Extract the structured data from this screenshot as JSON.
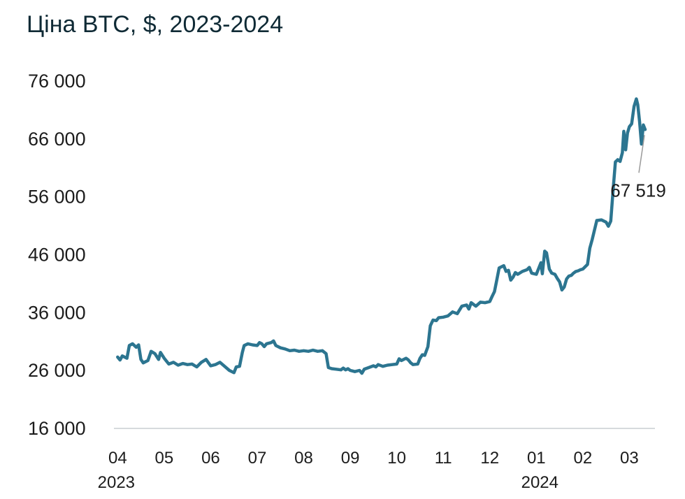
{
  "chart_data": {
    "type": "line",
    "title": "Ціна BTC, $, 2023-2024",
    "xlabel": "",
    "ylabel": "",
    "ylim": [
      16000,
      76000
    ],
    "yticks": [
      16000,
      26000,
      36000,
      46000,
      56000,
      66000,
      76000
    ],
    "ytick_labels": [
      "16 000",
      "26 000",
      "36 000",
      "46 000",
      "56 000",
      "66 000",
      "76 000"
    ],
    "xticks": [
      {
        "t": 0,
        "label": "04",
        "year": "2023"
      },
      {
        "t": 1,
        "label": "05",
        "year": ""
      },
      {
        "t": 2,
        "label": "06",
        "year": ""
      },
      {
        "t": 3,
        "label": "07",
        "year": ""
      },
      {
        "t": 4,
        "label": "08",
        "year": ""
      },
      {
        "t": 5,
        "label": "09",
        "year": ""
      },
      {
        "t": 6,
        "label": "10",
        "year": ""
      },
      {
        "t": 7,
        "label": "11",
        "year": ""
      },
      {
        "t": 8,
        "label": "12",
        "year": ""
      },
      {
        "t": 9,
        "label": "01",
        "year": "2024"
      },
      {
        "t": 10,
        "label": "02",
        "year": ""
      },
      {
        "t": 11,
        "label": "03",
        "year": ""
      }
    ],
    "xlim": [
      -0.05,
      11.55
    ],
    "grid": false,
    "line_color": "#2c7590",
    "series": [
      {
        "name": "BTC",
        "color": "#2c7590",
        "points": [
          [
            0.0,
            28200
          ],
          [
            0.05,
            27700
          ],
          [
            0.1,
            28400
          ],
          [
            0.2,
            28000
          ],
          [
            0.25,
            30200
          ],
          [
            0.32,
            30500
          ],
          [
            0.4,
            29900
          ],
          [
            0.45,
            30300
          ],
          [
            0.5,
            27800
          ],
          [
            0.55,
            27200
          ],
          [
            0.65,
            27600
          ],
          [
            0.72,
            29200
          ],
          [
            0.8,
            28800
          ],
          [
            0.88,
            27800
          ],
          [
            0.92,
            29000
          ],
          [
            1.0,
            28000
          ],
          [
            1.1,
            27000
          ],
          [
            1.2,
            27300
          ],
          [
            1.3,
            26800
          ],
          [
            1.4,
            27100
          ],
          [
            1.5,
            26900
          ],
          [
            1.6,
            27000
          ],
          [
            1.7,
            26500
          ],
          [
            1.8,
            27300
          ],
          [
            1.9,
            27800
          ],
          [
            2.0,
            26700
          ],
          [
            2.1,
            26900
          ],
          [
            2.2,
            27300
          ],
          [
            2.3,
            26600
          ],
          [
            2.4,
            25900
          ],
          [
            2.5,
            25500
          ],
          [
            2.55,
            26500
          ],
          [
            2.62,
            26600
          ],
          [
            2.68,
            29000
          ],
          [
            2.72,
            30200
          ],
          [
            2.8,
            30500
          ],
          [
            2.9,
            30300
          ],
          [
            3.0,
            30200
          ],
          [
            3.05,
            30700
          ],
          [
            3.1,
            30500
          ],
          [
            3.15,
            30000
          ],
          [
            3.2,
            30500
          ],
          [
            3.3,
            30700
          ],
          [
            3.35,
            31000
          ],
          [
            3.4,
            30200
          ],
          [
            3.5,
            29800
          ],
          [
            3.6,
            29600
          ],
          [
            3.7,
            29300
          ],
          [
            3.8,
            29400
          ],
          [
            3.9,
            29200
          ],
          [
            4.0,
            29300
          ],
          [
            4.1,
            29200
          ],
          [
            4.2,
            29400
          ],
          [
            4.3,
            29200
          ],
          [
            4.4,
            29300
          ],
          [
            4.48,
            28800
          ],
          [
            4.53,
            26400
          ],
          [
            4.6,
            26200
          ],
          [
            4.7,
            26100
          ],
          [
            4.8,
            26000
          ],
          [
            4.85,
            26300
          ],
          [
            4.9,
            26000
          ],
          [
            4.95,
            26200
          ],
          [
            5.0,
            25900
          ],
          [
            5.05,
            25800
          ],
          [
            5.1,
            25700
          ],
          [
            5.2,
            25900
          ],
          [
            5.25,
            25400
          ],
          [
            5.3,
            26100
          ],
          [
            5.4,
            26400
          ],
          [
            5.5,
            26700
          ],
          [
            5.55,
            26500
          ],
          [
            5.6,
            26900
          ],
          [
            5.7,
            26600
          ],
          [
            5.8,
            26800
          ],
          [
            5.9,
            26900
          ],
          [
            6.0,
            27000
          ],
          [
            6.05,
            27900
          ],
          [
            6.1,
            27600
          ],
          [
            6.2,
            28000
          ],
          [
            6.25,
            27700
          ],
          [
            6.3,
            27200
          ],
          [
            6.35,
            26900
          ],
          [
            6.45,
            27000
          ],
          [
            6.5,
            28000
          ],
          [
            6.55,
            28600
          ],
          [
            6.6,
            28500
          ],
          [
            6.67,
            30000
          ],
          [
            6.72,
            33600
          ],
          [
            6.78,
            34600
          ],
          [
            6.85,
            34500
          ],
          [
            6.9,
            35000
          ],
          [
            7.0,
            35100
          ],
          [
            7.1,
            35300
          ],
          [
            7.2,
            36000
          ],
          [
            7.3,
            35700
          ],
          [
            7.4,
            37000
          ],
          [
            7.5,
            37200
          ],
          [
            7.55,
            36500
          ],
          [
            7.6,
            37600
          ],
          [
            7.7,
            37000
          ],
          [
            7.8,
            37700
          ],
          [
            7.9,
            37600
          ],
          [
            8.0,
            37800
          ],
          [
            8.05,
            38700
          ],
          [
            8.1,
            39500
          ],
          [
            8.15,
            41500
          ],
          [
            8.2,
            43600
          ],
          [
            8.3,
            44000
          ],
          [
            8.35,
            43000
          ],
          [
            8.4,
            43200
          ],
          [
            8.45,
            41500
          ],
          [
            8.5,
            42000
          ],
          [
            8.55,
            42800
          ],
          [
            8.6,
            42500
          ],
          [
            8.7,
            43000
          ],
          [
            8.8,
            43300
          ],
          [
            8.85,
            43700
          ],
          [
            8.9,
            42700
          ],
          [
            9.0,
            42500
          ],
          [
            9.05,
            43500
          ],
          [
            9.1,
            44500
          ],
          [
            9.13,
            42600
          ],
          [
            9.18,
            46500
          ],
          [
            9.22,
            46200
          ],
          [
            9.28,
            43400
          ],
          [
            9.33,
            42700
          ],
          [
            9.4,
            42500
          ],
          [
            9.45,
            41800
          ],
          [
            9.5,
            41200
          ],
          [
            9.55,
            39800
          ],
          [
            9.6,
            40300
          ],
          [
            9.65,
            41700
          ],
          [
            9.7,
            42200
          ],
          [
            9.75,
            42300
          ],
          [
            9.8,
            42700
          ],
          [
            9.85,
            43000
          ],
          [
            9.9,
            43100
          ],
          [
            9.95,
            43300
          ],
          [
            10.0,
            43400
          ],
          [
            10.1,
            44200
          ],
          [
            10.15,
            47000
          ],
          [
            10.2,
            48500
          ],
          [
            10.3,
            51800
          ],
          [
            10.4,
            51900
          ],
          [
            10.5,
            51500
          ],
          [
            10.55,
            50800
          ],
          [
            10.6,
            51700
          ],
          [
            10.65,
            57000
          ],
          [
            10.7,
            61900
          ],
          [
            10.75,
            62300
          ],
          [
            10.8,
            62000
          ],
          [
            10.85,
            63500
          ],
          [
            10.88,
            67200
          ],
          [
            10.92,
            64000
          ],
          [
            10.96,
            66900
          ],
          [
            11.0,
            68000
          ],
          [
            11.05,
            68500
          ],
          [
            11.1,
            71500
          ],
          [
            11.15,
            72800
          ],
          [
            11.18,
            71800
          ],
          [
            11.22,
            68900
          ],
          [
            11.26,
            65000
          ],
          [
            11.3,
            68300
          ],
          [
            11.34,
            67519
          ]
        ]
      }
    ],
    "annotation": {
      "text": "67 519",
      "x": 11.34,
      "y": 67519
    }
  }
}
